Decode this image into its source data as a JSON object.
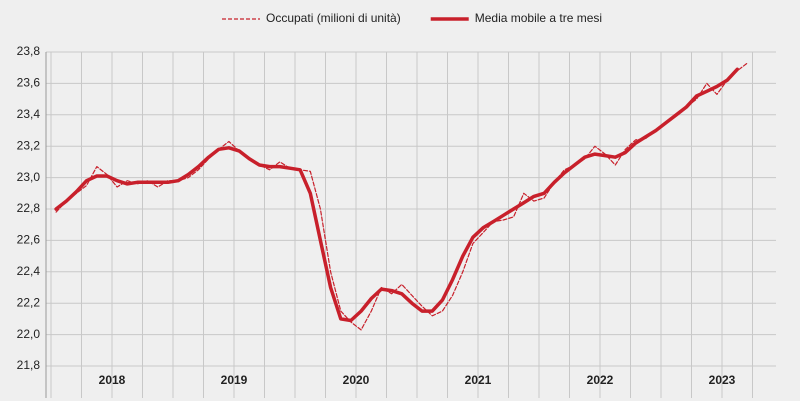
{
  "chart_data": {
    "type": "line",
    "categories": [
      null,
      null,
      null,
      null,
      null,
      "2018",
      null,
      null,
      null,
      null,
      null,
      null,
      null,
      null,
      null,
      null,
      null,
      "2019",
      null,
      null,
      null,
      null,
      null,
      null,
      null,
      null,
      null,
      null,
      null,
      "2020",
      null,
      null,
      null,
      null,
      null,
      null,
      null,
      null,
      null,
      null,
      null,
      "2021",
      null,
      null,
      null,
      null,
      null,
      null,
      null,
      null,
      null,
      null,
      null,
      "2022",
      null,
      null,
      null,
      null,
      null,
      null,
      null,
      null,
      null,
      null,
      null,
      "2023",
      null,
      null,
      null
    ],
    "series": [
      {
        "name": "Occupati (milioni di unità)",
        "color": "#c8202b",
        "style": "dashed",
        "values": [
          22.78,
          22.85,
          22.9,
          22.95,
          23.07,
          23.02,
          22.94,
          22.98,
          22.96,
          22.98,
          22.94,
          22.98,
          22.98,
          23.0,
          23.05,
          23.12,
          23.18,
          23.23,
          23.17,
          23.12,
          23.08,
          23.05,
          23.1,
          23.06,
          23.05,
          23.04,
          22.8,
          22.4,
          22.15,
          22.08,
          22.03,
          22.15,
          22.3,
          22.26,
          22.32,
          22.25,
          22.18,
          22.12,
          22.15,
          22.25,
          22.4,
          22.58,
          22.65,
          22.72,
          22.73,
          22.75,
          22.9,
          22.85,
          22.87,
          22.97,
          23.05,
          23.08,
          23.12,
          23.2,
          23.15,
          23.08,
          23.18,
          23.24,
          23.25,
          23.3,
          23.35,
          23.4,
          23.45,
          23.5,
          23.6,
          23.53,
          23.62,
          23.68,
          23.73
        ]
      },
      {
        "name": "Media mobile a tre mesi",
        "color": "#c8202b",
        "style": "solid",
        "values": [
          22.8,
          22.85,
          22.91,
          22.98,
          23.01,
          23.01,
          22.98,
          22.96,
          22.97,
          22.97,
          22.97,
          22.97,
          22.98,
          23.02,
          23.07,
          23.13,
          23.18,
          23.19,
          23.17,
          23.12,
          23.08,
          23.07,
          23.07,
          23.06,
          23.05,
          22.9,
          22.6,
          22.3,
          22.1,
          22.09,
          22.15,
          22.23,
          22.29,
          22.28,
          22.26,
          22.2,
          22.15,
          22.15,
          22.22,
          22.35,
          22.5,
          22.62,
          22.68,
          22.72,
          22.76,
          22.8,
          22.84,
          22.88,
          22.9,
          22.97,
          23.03,
          23.08,
          23.13,
          23.15,
          23.14,
          23.13,
          23.16,
          23.22,
          23.26,
          23.3,
          23.35,
          23.4,
          23.45,
          23.52,
          23.55,
          23.58,
          23.62,
          23.69,
          null
        ]
      }
    ],
    "ylim": [
      21.8,
      23.8
    ],
    "yticks": [
      {
        "value": 21.8,
        "label": "21,8"
      },
      {
        "value": 22.0,
        "label": "22,0"
      },
      {
        "value": 22.2,
        "label": "22,2"
      },
      {
        "value": 22.4,
        "label": "22,4"
      },
      {
        "value": 22.6,
        "label": "22,6"
      },
      {
        "value": 22.8,
        "label": "22,8"
      },
      {
        "value": 23.0,
        "label": "23,0"
      },
      {
        "value": 23.2,
        "label": "23,2"
      },
      {
        "value": 23.4,
        "label": "23,4"
      },
      {
        "value": 23.6,
        "label": "23,6"
      },
      {
        "value": 23.8,
        "label": "23,8"
      }
    ],
    "grid": true,
    "legend": "top"
  }
}
